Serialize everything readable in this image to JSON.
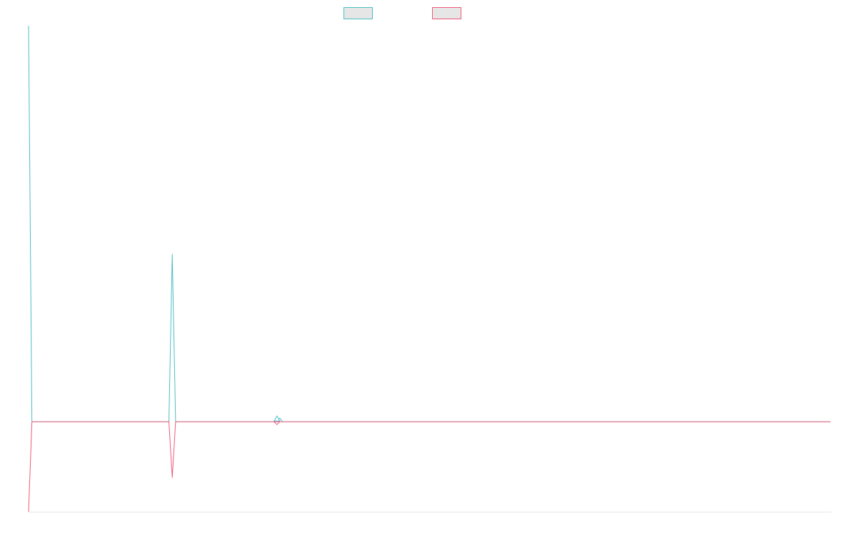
{
  "chart_data": {
    "type": "line",
    "title": "",
    "xlabel": "",
    "ylabel": "",
    "grid": false,
    "legend_placement": "top-center",
    "x_count": 121,
    "ylim": [
      -0.5,
      2.2
    ],
    "series": [
      {
        "color": "#4bbec6",
        "legend_fill": "#e6e6e6",
        "points": [
          [
            0,
            2.2
          ],
          [
            0.5,
            0
          ],
          [
            21,
            0
          ],
          [
            21.5,
            0.93
          ],
          [
            22,
            0
          ],
          [
            37,
            0
          ],
          [
            37.6,
            0.02
          ],
          [
            38,
            0
          ],
          [
            120,
            0
          ]
        ]
      },
      {
        "color": "#f0587a",
        "legend_fill": "#e6e6e6",
        "points": [
          [
            0,
            -0.5
          ],
          [
            0.5,
            0
          ],
          [
            21,
            0
          ],
          [
            21.5,
            -0.31
          ],
          [
            22,
            0
          ],
          [
            37,
            0
          ],
          [
            37.6,
            0
          ],
          [
            38,
            0
          ],
          [
            120,
            0
          ]
        ]
      }
    ],
    "markers": [
      {
        "series": 0,
        "x": 37,
        "y": 0.02
      },
      {
        "series": 1,
        "x": 37,
        "y": 0
      }
    ]
  }
}
